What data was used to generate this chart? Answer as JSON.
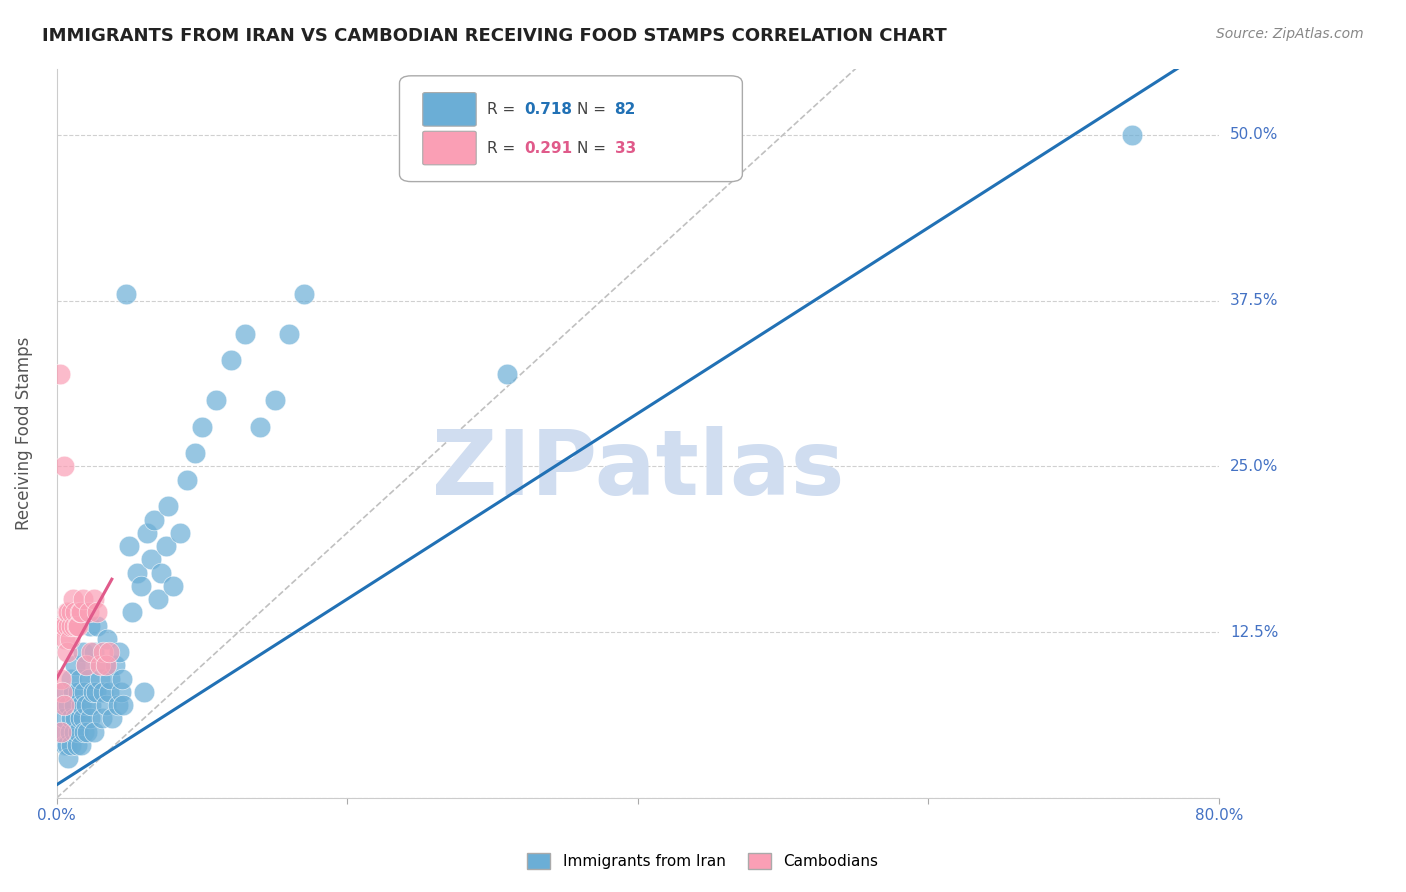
{
  "title": "IMMIGRANTS FROM IRAN VS CAMBODIAN RECEIVING FOOD STAMPS CORRELATION CHART",
  "source": "Source: ZipAtlas.com",
  "ylabel": "Receiving Food Stamps",
  "xlim": [
    0.0,
    0.8
  ],
  "ylim": [
    0.0,
    0.55
  ],
  "iran_R": 0.718,
  "iran_N": 82,
  "camb_R": 0.291,
  "camb_N": 33,
  "iran_color": "#6baed6",
  "camb_color": "#fa9fb5",
  "iran_line_color": "#2171b5",
  "camb_line_color": "#e05a8a",
  "ref_line_color": "#c0c0c0",
  "legend_label_iran": "Immigrants from Iran",
  "legend_label_camb": "Cambodians",
  "watermark": "ZIPatlas",
  "watermark_color": "#d0ddf0",
  "background_color": "#ffffff",
  "grid_color": "#d0d0d0",
  "title_color": "#222222",
  "axis_label_color": "#555555",
  "right_tick_color": "#4472c4",
  "iran_scatter_x": [
    0.003,
    0.004,
    0.005,
    0.005,
    0.006,
    0.007,
    0.008,
    0.008,
    0.009,
    0.01,
    0.01,
    0.01,
    0.011,
    0.012,
    0.012,
    0.013,
    0.013,
    0.014,
    0.015,
    0.015,
    0.016,
    0.016,
    0.017,
    0.017,
    0.018,
    0.018,
    0.019,
    0.019,
    0.02,
    0.02,
    0.021,
    0.022,
    0.023,
    0.023,
    0.024,
    0.025,
    0.026,
    0.026,
    0.027,
    0.028,
    0.03,
    0.031,
    0.032,
    0.033,
    0.034,
    0.035,
    0.036,
    0.037,
    0.038,
    0.04,
    0.042,
    0.043,
    0.044,
    0.045,
    0.046,
    0.048,
    0.05,
    0.052,
    0.055,
    0.058,
    0.06,
    0.062,
    0.065,
    0.067,
    0.07,
    0.072,
    0.075,
    0.077,
    0.08,
    0.085,
    0.09,
    0.095,
    0.1,
    0.11,
    0.12,
    0.13,
    0.14,
    0.15,
    0.16,
    0.17,
    0.31,
    0.74
  ],
  "iran_scatter_y": [
    0.05,
    0.07,
    0.08,
    0.06,
    0.04,
    0.04,
    0.03,
    0.07,
    0.05,
    0.09,
    0.06,
    0.04,
    0.08,
    0.07,
    0.05,
    0.1,
    0.06,
    0.04,
    0.08,
    0.05,
    0.06,
    0.09,
    0.07,
    0.04,
    0.11,
    0.06,
    0.05,
    0.08,
    0.07,
    0.1,
    0.05,
    0.09,
    0.06,
    0.13,
    0.07,
    0.08,
    0.11,
    0.05,
    0.08,
    0.13,
    0.09,
    0.06,
    0.08,
    0.1,
    0.07,
    0.12,
    0.08,
    0.09,
    0.06,
    0.1,
    0.07,
    0.11,
    0.08,
    0.09,
    0.07,
    0.38,
    0.19,
    0.14,
    0.17,
    0.16,
    0.08,
    0.2,
    0.18,
    0.21,
    0.15,
    0.17,
    0.19,
    0.22,
    0.16,
    0.2,
    0.24,
    0.26,
    0.28,
    0.3,
    0.33,
    0.35,
    0.28,
    0.3,
    0.35,
    0.38,
    0.32,
    0.5
  ],
  "camb_scatter_x": [
    0.002,
    0.003,
    0.003,
    0.004,
    0.004,
    0.005,
    0.005,
    0.006,
    0.006,
    0.007,
    0.007,
    0.008,
    0.008,
    0.009,
    0.01,
    0.01,
    0.011,
    0.012,
    0.013,
    0.014,
    0.015,
    0.016,
    0.017,
    0.018,
    0.02,
    0.022,
    0.024,
    0.026,
    0.028,
    0.03,
    0.032,
    0.034,
    0.036
  ],
  "camb_scatter_y": [
    0.32,
    0.05,
    0.09,
    0.08,
    0.13,
    0.25,
    0.07,
    0.12,
    0.13,
    0.14,
    0.11,
    0.13,
    0.14,
    0.12,
    0.13,
    0.14,
    0.15,
    0.13,
    0.14,
    0.13,
    0.13,
    0.14,
    0.14,
    0.15,
    0.1,
    0.14,
    0.11,
    0.15,
    0.14,
    0.1,
    0.11,
    0.1,
    0.11
  ]
}
